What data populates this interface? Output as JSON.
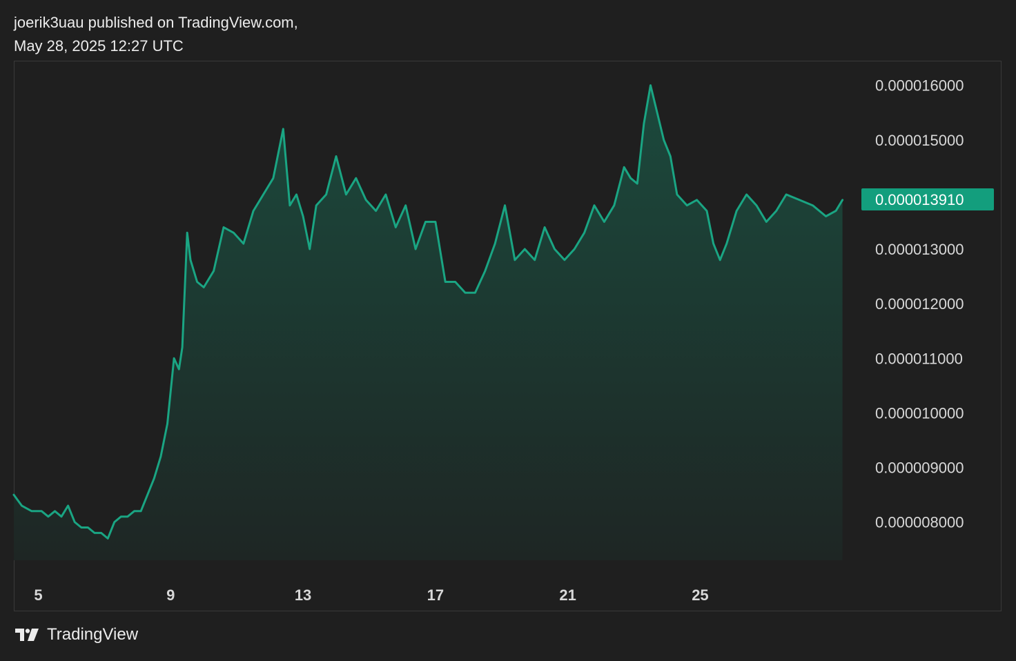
{
  "header": {
    "line1": "joerik3uau published on TradingView.com,",
    "line2": "May 28, 2025 12:27 UTC"
  },
  "footer": {
    "logo_icon": "tradingview-logo-icon",
    "brand": "TradingView"
  },
  "colors": {
    "background": "#1f1f1f",
    "line": "#1aa583",
    "area_top": "#1b4a3d",
    "area_bottom": "#1e2624",
    "axis_text": "#d8d8d8",
    "price_badge": "#139e7d"
  },
  "chart_data": {
    "type": "area",
    "title": "",
    "xlabel": "",
    "ylabel": "",
    "x_ticks": [
      "5",
      "9",
      "13",
      "17",
      "21",
      "25"
    ],
    "x_tick_days": [
      5,
      9,
      13,
      17,
      21,
      25
    ],
    "y_ticks": [
      "0.000016000",
      "0.000015000",
      "0.000013000",
      "0.000012000",
      "0.000011000",
      "0.000010000",
      "0.000009000",
      "0.000008000"
    ],
    "y_tick_values": [
      1.6e-05,
      1.5e-05,
      1.3e-05,
      1.2e-05,
      1.1e-05,
      1e-05,
      9e-06,
      8e-06
    ],
    "ylim": [
      7.3e-06,
      1.64e-05
    ],
    "xlim": [
      4.26,
      29.6
    ],
    "last_price": {
      "label": "0.000013910",
      "value": 1.391e-05
    },
    "series": [
      {
        "x": [
          4.26,
          4.5,
          4.8,
          5.1,
          5.3,
          5.5,
          5.7,
          5.9,
          6.1,
          6.3,
          6.5,
          6.7,
          6.9,
          7.1,
          7.3,
          7.5,
          7.7,
          7.9,
          8.1,
          8.3,
          8.5,
          8.7,
          8.9,
          9.0,
          9.1,
          9.25,
          9.35,
          9.5,
          9.6,
          9.8,
          10.0,
          10.3,
          10.6,
          10.9,
          11.2,
          11.5,
          11.8,
          12.1,
          12.4,
          12.6,
          12.8,
          13.0,
          13.2,
          13.4,
          13.7,
          14.0,
          14.3,
          14.6,
          14.9,
          15.2,
          15.5,
          15.8,
          16.1,
          16.4,
          16.7,
          17.0,
          17.3,
          17.6,
          17.9,
          18.2,
          18.5,
          18.8,
          19.1,
          19.4,
          19.7,
          20.0,
          20.3,
          20.6,
          20.9,
          21.2,
          21.5,
          21.8,
          22.1,
          22.4,
          22.7,
          22.9,
          23.1,
          23.3,
          23.5,
          23.7,
          23.9,
          24.1,
          24.3,
          24.6,
          24.9,
          25.2,
          25.4,
          25.6,
          25.8,
          26.1,
          26.4,
          26.7,
          27.0,
          27.3,
          27.6,
          28.0,
          28.4,
          28.8,
          29.1,
          29.3
        ],
        "values": [
          8.5e-06,
          8.3e-06,
          8.2e-06,
          8.2e-06,
          8.1e-06,
          8.2e-06,
          8.1e-06,
          8.3e-06,
          8e-06,
          7.9e-06,
          7.9e-06,
          7.8e-06,
          7.8e-06,
          7.7e-06,
          8e-06,
          8.1e-06,
          8.1e-06,
          8.2e-06,
          8.2e-06,
          8.5e-06,
          8.8e-06,
          9.2e-06,
          9.8e-06,
          1.04e-05,
          1.1e-05,
          1.08e-05,
          1.12e-05,
          1.33e-05,
          1.28e-05,
          1.24e-05,
          1.23e-05,
          1.26e-05,
          1.34e-05,
          1.33e-05,
          1.31e-05,
          1.37e-05,
          1.4e-05,
          1.43e-05,
          1.52e-05,
          1.38e-05,
          1.4e-05,
          1.36e-05,
          1.3e-05,
          1.38e-05,
          1.4e-05,
          1.47e-05,
          1.4e-05,
          1.43e-05,
          1.39e-05,
          1.37e-05,
          1.4e-05,
          1.34e-05,
          1.38e-05,
          1.3e-05,
          1.35e-05,
          1.35e-05,
          1.24e-05,
          1.24e-05,
          1.22e-05,
          1.22e-05,
          1.26e-05,
          1.31e-05,
          1.38e-05,
          1.28e-05,
          1.3e-05,
          1.28e-05,
          1.34e-05,
          1.3e-05,
          1.28e-05,
          1.3e-05,
          1.33e-05,
          1.38e-05,
          1.35e-05,
          1.38e-05,
          1.45e-05,
          1.43e-05,
          1.42e-05,
          1.53e-05,
          1.6e-05,
          1.55e-05,
          1.5e-05,
          1.47e-05,
          1.4e-05,
          1.38e-05,
          1.39e-05,
          1.37e-05,
          1.31e-05,
          1.28e-05,
          1.31e-05,
          1.37e-05,
          1.4e-05,
          1.38e-05,
          1.35e-05,
          1.37e-05,
          1.4e-05,
          1.39e-05,
          1.38e-05,
          1.36e-05,
          1.37e-05,
          1.39e-05
        ]
      }
    ]
  }
}
